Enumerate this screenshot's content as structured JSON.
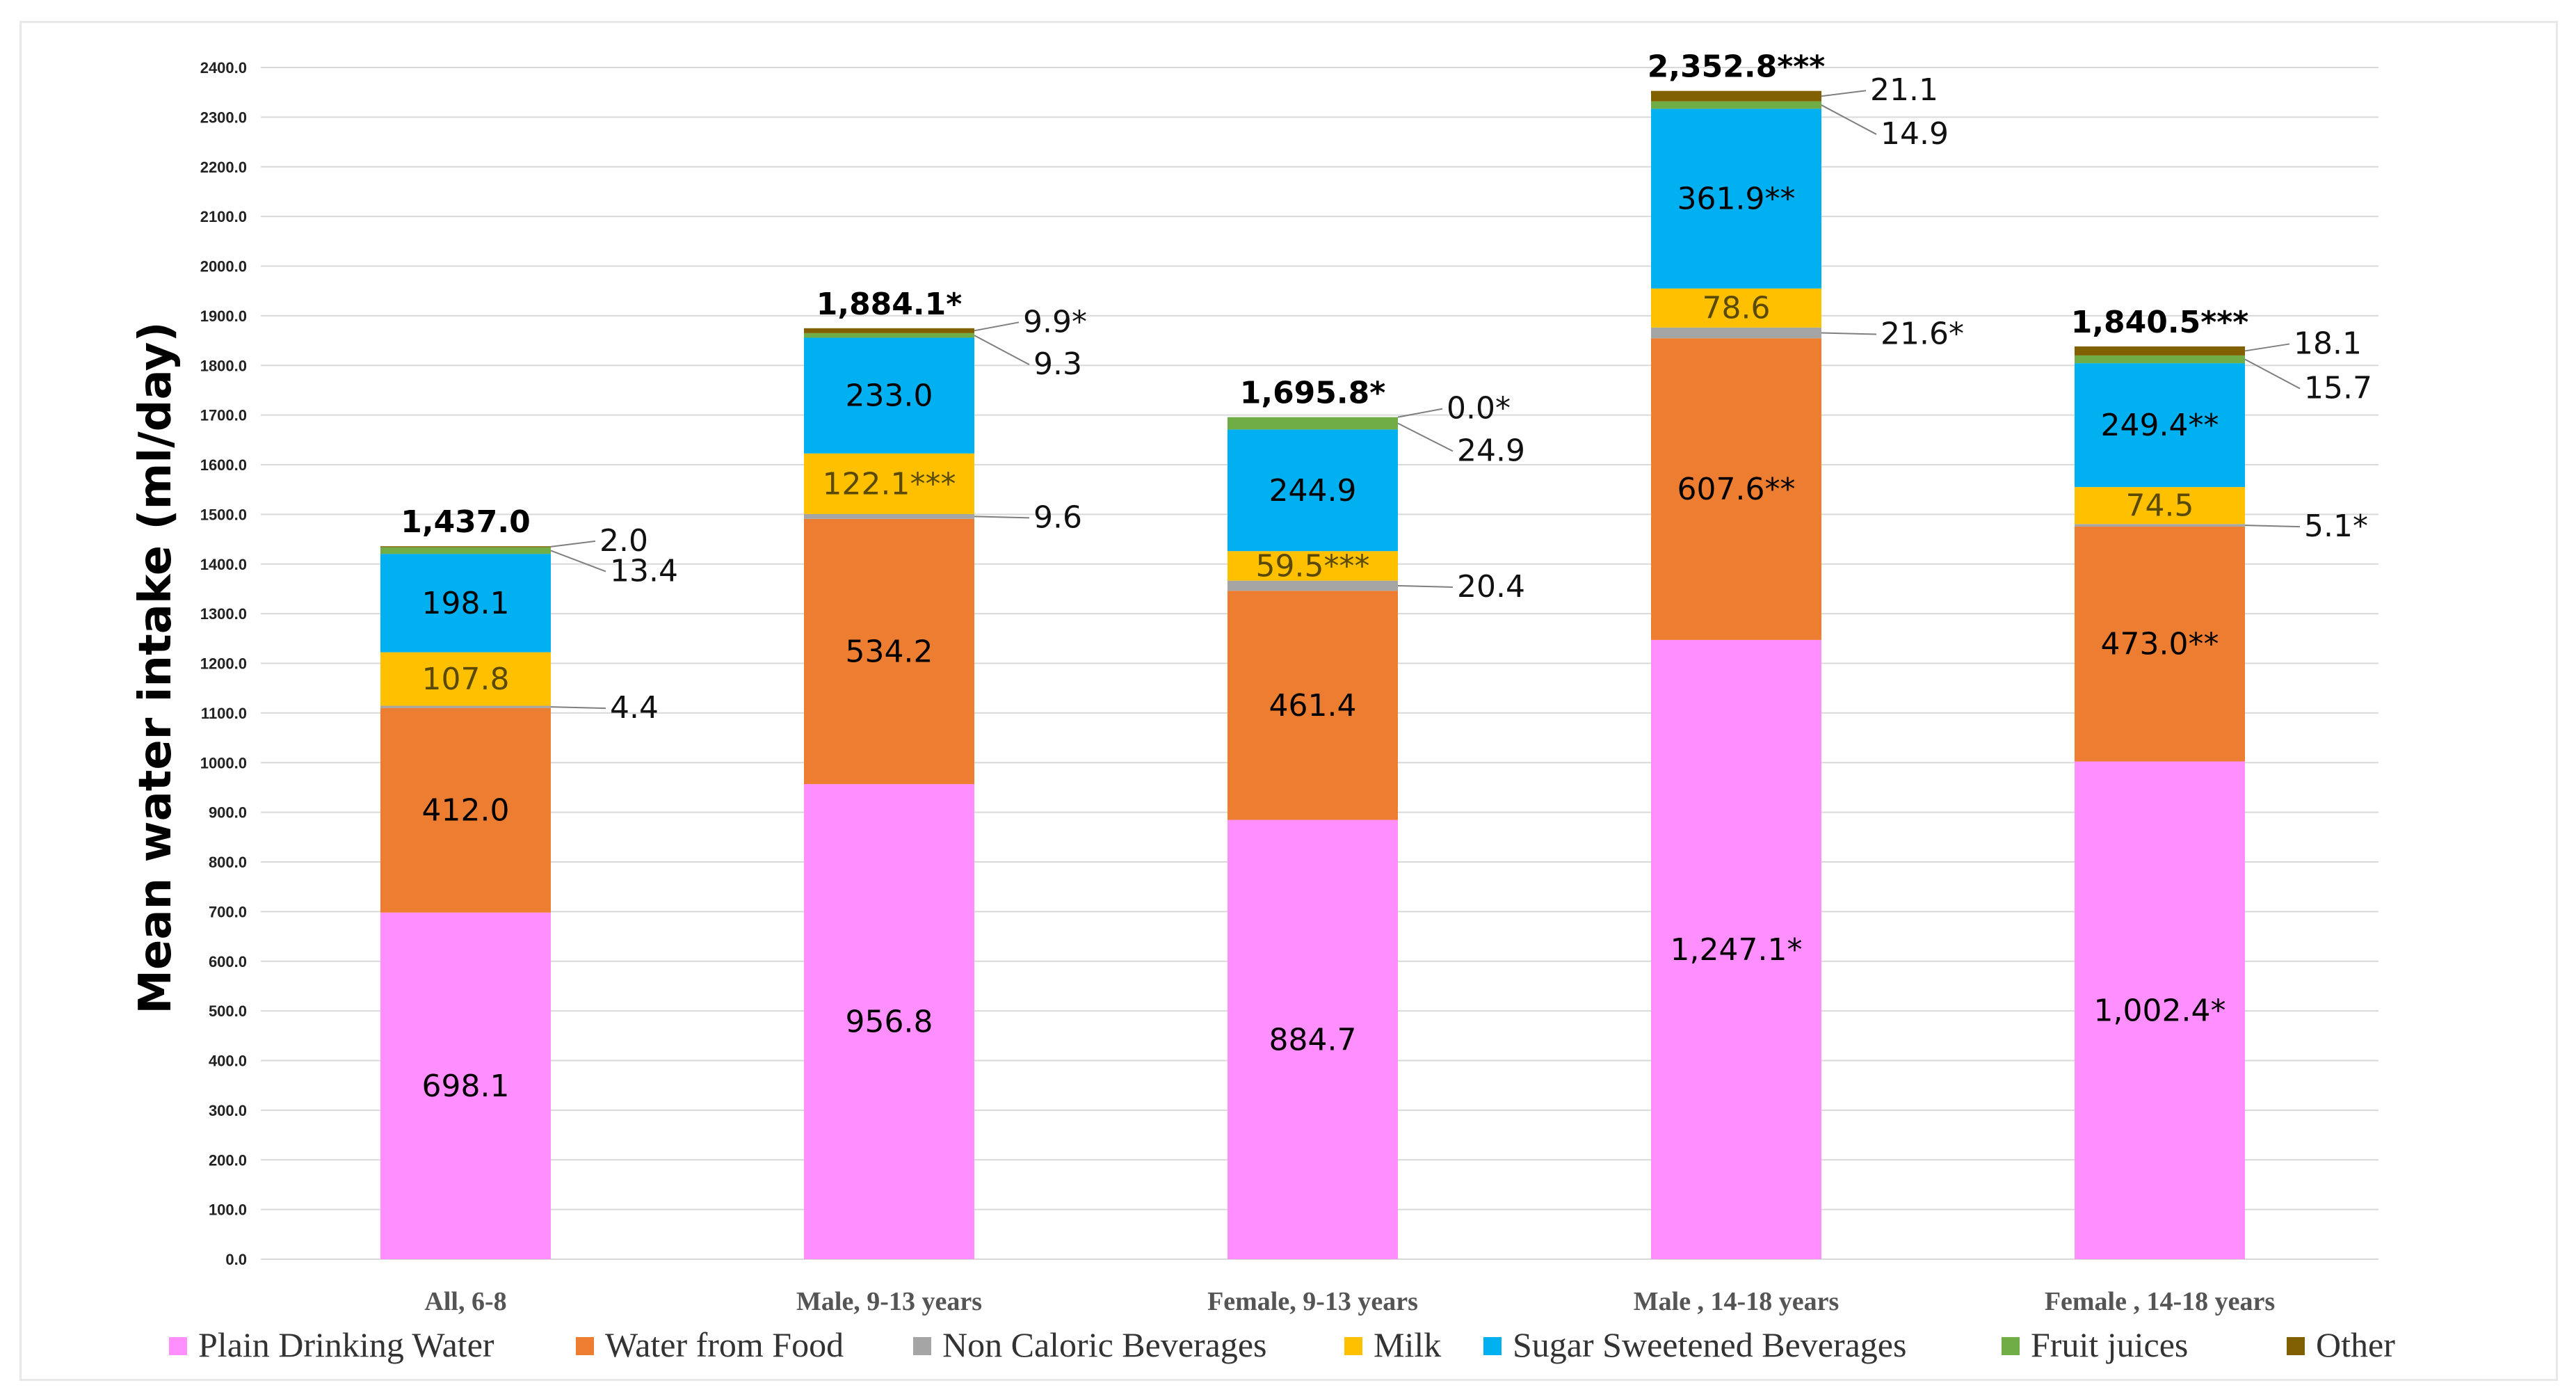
{
  "chart_data": {
    "type": "bar",
    "stacked": true,
    "title": "",
    "ylabel": "Mean  water intake (ml/day)",
    "xlabel": "",
    "ylim": [
      0,
      2400
    ],
    "yticks": [
      "0.0",
      "100.0",
      "200.0",
      "300.0",
      "400.0",
      "500.0",
      "600.0",
      "700.0",
      "800.0",
      "900.0",
      "1000.0",
      "1100.0",
      "1200.0",
      "1300.0",
      "1400.0",
      "1500.0",
      "1600.0",
      "1700.0",
      "1800.0",
      "1900.0",
      "2000.0",
      "2100.0",
      "2200.0",
      "2300.0",
      "2400.0"
    ],
    "grid": true,
    "legend_position": "bottom",
    "categories": [
      "All, 6-8",
      "Male, 9-13 years",
      "Female, 9-13 years",
      "Male , 14-18 years",
      "Female , 14-18 years"
    ],
    "totals": [
      "1,437.0",
      "1,884.1*",
      "1,695.8*",
      "2,352.8***",
      "1,840.5***"
    ],
    "series": [
      {
        "name": "Plain Drinking Water",
        "color": "#ff8fff",
        "label_color": "#000000",
        "values": [
          698.1,
          956.8,
          884.7,
          1247.1,
          1002.4
        ],
        "labels": [
          "698.1",
          "956.8",
          "884.7",
          "1,247.1*",
          "1,002.4*"
        ],
        "outside": [
          false,
          false,
          false,
          false,
          false
        ]
      },
      {
        "name": "Water from Food",
        "color": "#ed7d31",
        "label_color": "#000000",
        "values": [
          412.0,
          534.2,
          461.4,
          607.6,
          473.0
        ],
        "labels": [
          "412.0",
          "534.2",
          "461.4",
          "607.6**",
          "473.0**"
        ],
        "outside": [
          false,
          false,
          false,
          false,
          false
        ]
      },
      {
        "name": "Non Caloric Beverages",
        "color": "#a5a5a5",
        "label_color": "#000000",
        "values": [
          4.4,
          9.6,
          20.4,
          21.6,
          5.1
        ],
        "labels": [
          "4.4",
          "9.6",
          "20.4",
          "21.6*",
          "5.1*"
        ],
        "outside": [
          true,
          true,
          true,
          true,
          true
        ]
      },
      {
        "name": "Milk",
        "color": "#ffc000",
        "label_color": "#5a4a00",
        "values": [
          107.8,
          122.1,
          59.5,
          78.6,
          74.5
        ],
        "labels": [
          "107.8",
          "122.1***",
          "59.5***",
          "78.6",
          "74.5"
        ],
        "outside": [
          false,
          false,
          false,
          false,
          false
        ]
      },
      {
        "name": "Sugar Sweetened Beverages",
        "color": "#00b0f0",
        "label_color": "#000000",
        "values": [
          198.1,
          233.0,
          244.9,
          361.9,
          249.4
        ],
        "labels": [
          "198.1",
          "233.0",
          "244.9",
          "361.9**",
          "249.4**"
        ],
        "outside": [
          false,
          false,
          false,
          false,
          false
        ]
      },
      {
        "name": "Fruit juices",
        "color": "#70ad47",
        "label_color": "#000000",
        "values": [
          13.4,
          9.3,
          24.9,
          14.9,
          15.7
        ],
        "labels": [
          "13.4",
          "9.3",
          "24.9",
          "14.9",
          "15.7"
        ],
        "outside": [
          true,
          true,
          true,
          true,
          true
        ]
      },
      {
        "name": "Other",
        "color": "#806000",
        "label_color": "#000000",
        "values": [
          2.0,
          9.9,
          0.0,
          21.1,
          18.1
        ],
        "labels": [
          "2.0",
          "9.9*",
          "0.0*",
          "21.1",
          "18.1"
        ],
        "outside": [
          true,
          true,
          true,
          true,
          true
        ]
      }
    ]
  }
}
